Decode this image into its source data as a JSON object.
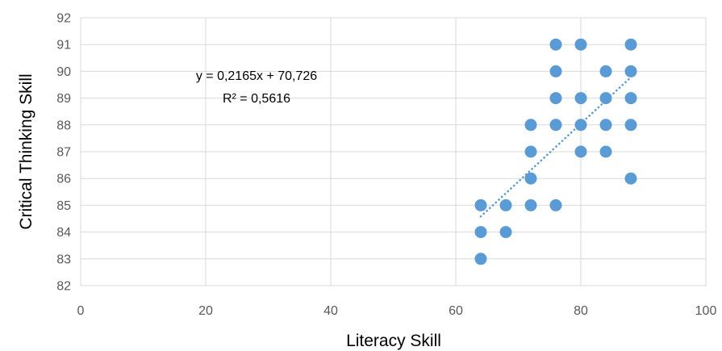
{
  "chart_data": {
    "type": "scatter",
    "xlabel": "Literacy Skill",
    "ylabel": "Critical Thinking Skill",
    "xlim": [
      0,
      100
    ],
    "ylim": [
      82,
      92
    ],
    "xticks": [
      0,
      20,
      40,
      60,
      80,
      100
    ],
    "yticks": [
      82,
      83,
      84,
      85,
      86,
      87,
      88,
      89,
      90,
      91,
      92
    ],
    "xtick_labels": [
      "0",
      "20",
      "40",
      "60",
      "80",
      "100"
    ],
    "ytick_labels": [
      "82",
      "83",
      "84",
      "85",
      "86",
      "87",
      "88",
      "89",
      "90",
      "91",
      "92"
    ],
    "grid": true,
    "marker_color": "#5b9bd5",
    "points": [
      {
        "x": 64,
        "y": 83
      },
      {
        "x": 64,
        "y": 84
      },
      {
        "x": 64,
        "y": 85
      },
      {
        "x": 68,
        "y": 84
      },
      {
        "x": 68,
        "y": 85
      },
      {
        "x": 72,
        "y": 85
      },
      {
        "x": 72,
        "y": 86
      },
      {
        "x": 72,
        "y": 87
      },
      {
        "x": 72,
        "y": 88
      },
      {
        "x": 76,
        "y": 85
      },
      {
        "x": 76,
        "y": 88
      },
      {
        "x": 76,
        "y": 89
      },
      {
        "x": 76,
        "y": 90
      },
      {
        "x": 76,
        "y": 91
      },
      {
        "x": 80,
        "y": 87
      },
      {
        "x": 80,
        "y": 88
      },
      {
        "x": 80,
        "y": 89
      },
      {
        "x": 80,
        "y": 91
      },
      {
        "x": 84,
        "y": 87
      },
      {
        "x": 84,
        "y": 88
      },
      {
        "x": 84,
        "y": 89
      },
      {
        "x": 84,
        "y": 90
      },
      {
        "x": 88,
        "y": 86
      },
      {
        "x": 88,
        "y": 88
      },
      {
        "x": 88,
        "y": 89
      },
      {
        "x": 88,
        "y": 90
      },
      {
        "x": 88,
        "y": 91
      }
    ],
    "trendline": {
      "type": "linear",
      "slope": 0.2165,
      "intercept": 70.726,
      "x_range": [
        64,
        88
      ],
      "style": "dotted",
      "equation_label": "y = 0,2165x + 70,726",
      "r2_label": "R² = 0,5616"
    }
  }
}
